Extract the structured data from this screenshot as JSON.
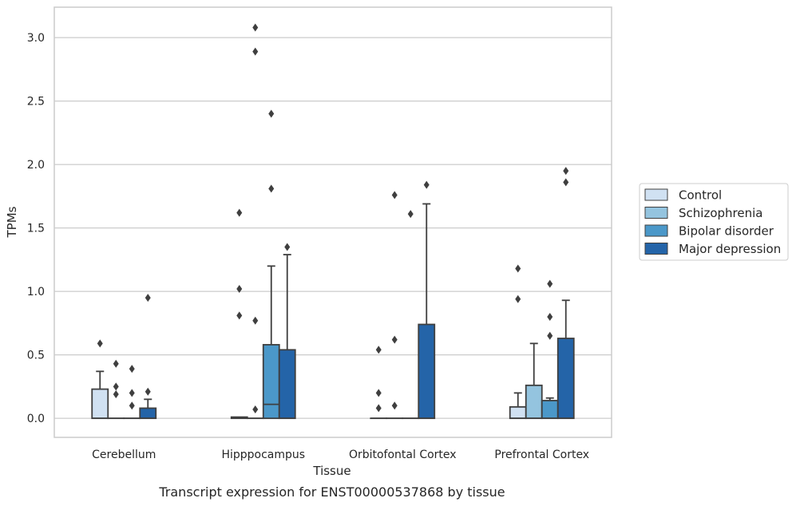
{
  "caption": "Transcript expression for ENST00000537868 by tissue",
  "chart_data": {
    "type": "box",
    "xlabel": "Tissue",
    "ylabel": "TPMs",
    "ylim": [
      -0.15,
      3.24
    ],
    "yticks": [
      0.0,
      0.5,
      1.0,
      1.5,
      2.0,
      2.5,
      3.0
    ],
    "ytick_labels": [
      "0.0",
      "0.5",
      "1.0",
      "1.5",
      "2.0",
      "2.5",
      "3.0"
    ],
    "grid": "horizontal",
    "legend_position": "right",
    "categories": [
      "Cerebellum",
      "Hipppocampus",
      "Orbitofontal Cortex",
      "Prefrontal Cortex"
    ],
    "series": [
      {
        "name": "Control",
        "color": "#d0e1f2",
        "boxes": [
          {
            "q1": 0.0,
            "median": 0.0,
            "q3": 0.23,
            "whislo": 0.0,
            "whishi": 0.37,
            "fliers": [
              0.59
            ]
          },
          {
            "q1": 0.0,
            "median": 0.0,
            "q3": 0.01,
            "whislo": 0.0,
            "whishi": 0.01,
            "fliers": [
              0.81,
              1.02,
              1.62
            ]
          },
          {
            "q1": 0.0,
            "median": 0.0,
            "q3": 0.0,
            "whislo": 0.0,
            "whishi": 0.0,
            "fliers": [
              0.08,
              0.2,
              0.54
            ]
          },
          {
            "q1": 0.0,
            "median": 0.0,
            "q3": 0.09,
            "whislo": 0.0,
            "whishi": 0.2,
            "fliers": [
              0.94,
              1.18
            ]
          }
        ]
      },
      {
        "name": "Schizophrenia",
        "color": "#94c4df",
        "boxes": [
          {
            "q1": 0.0,
            "median": 0.0,
            "q3": 0.0,
            "whislo": 0.0,
            "whishi": 0.0,
            "fliers": [
              0.19,
              0.25,
              0.43
            ]
          },
          {
            "q1": 0.0,
            "median": 0.0,
            "q3": 0.0,
            "whislo": 0.0,
            "whishi": 0.0,
            "fliers": [
              0.07,
              0.77,
              2.89,
              3.08
            ]
          },
          {
            "q1": 0.0,
            "median": 0.0,
            "q3": 0.0,
            "whislo": 0.0,
            "whishi": 0.0,
            "fliers": [
              0.1,
              0.62,
              1.76
            ]
          },
          {
            "q1": 0.0,
            "median": 0.0,
            "q3": 0.26,
            "whislo": 0.0,
            "whishi": 0.59,
            "fliers": []
          }
        ]
      },
      {
        "name": "Bipolar disorder",
        "color": "#4b98c9",
        "boxes": [
          {
            "q1": 0.0,
            "median": 0.0,
            "q3": 0.0,
            "whislo": 0.0,
            "whishi": 0.0,
            "fliers": [
              0.1,
              0.2,
              0.39
            ]
          },
          {
            "q1": 0.0,
            "median": 0.11,
            "q3": 0.58,
            "whislo": 0.0,
            "whishi": 1.2,
            "fliers": [
              1.81,
              2.4
            ]
          },
          {
            "q1": 0.0,
            "median": 0.0,
            "q3": 0.0,
            "whislo": 0.0,
            "whishi": 0.0,
            "fliers": [
              1.61
            ]
          },
          {
            "q1": 0.0,
            "median": 0.0,
            "q3": 0.14,
            "whislo": 0.0,
            "whishi": 0.16,
            "fliers": [
              0.65,
              0.8,
              1.06
            ]
          }
        ]
      },
      {
        "name": "Major depression",
        "color": "#2464a8",
        "boxes": [
          {
            "q1": 0.0,
            "median": 0.0,
            "q3": 0.08,
            "whislo": 0.0,
            "whishi": 0.15,
            "fliers": [
              0.21,
              0.95
            ]
          },
          {
            "q1": 0.0,
            "median": 0.0,
            "q3": 0.54,
            "whislo": 0.0,
            "whishi": 1.29,
            "fliers": [
              1.35
            ]
          },
          {
            "q1": 0.0,
            "median": 0.0,
            "q3": 0.74,
            "whislo": 0.0,
            "whishi": 1.69,
            "fliers": [
              1.84
            ]
          },
          {
            "q1": 0.0,
            "median": 0.0,
            "q3": 0.63,
            "whislo": 0.0,
            "whishi": 0.93,
            "fliers": [
              1.86,
              1.95
            ]
          }
        ]
      }
    ]
  }
}
